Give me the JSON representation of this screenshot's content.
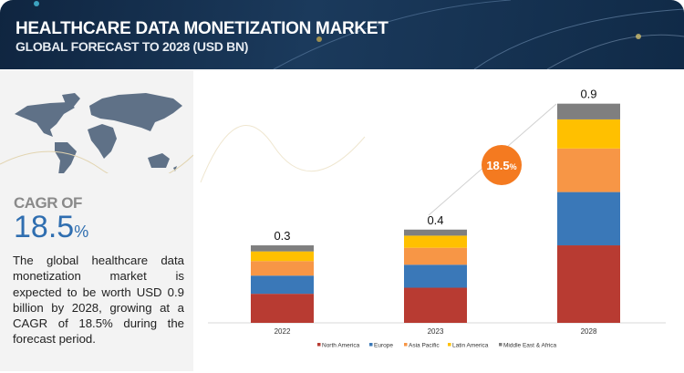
{
  "header": {
    "title": "HEALTHCARE DATA MONETIZATION MARKET",
    "subtitle": "GLOBAL FORECAST TO 2028 (USD BN)"
  },
  "sidebar": {
    "cagr_label": "CAGR OF",
    "cagr_value": "18.5",
    "cagr_unit": "%",
    "description": "The global healthcare data monetization market is expected to be worth USD 0.9 billion by 2028, growing at a CAGR of 18.5% during the forecast period."
  },
  "badge": {
    "value": "18.5",
    "unit": "%",
    "color": "#f47a20"
  },
  "chart_data": {
    "type": "bar",
    "stacked": true,
    "categories": [
      "2022",
      "2023",
      "2028"
    ],
    "totals_labels": [
      "0.3",
      "0.4",
      "0.9"
    ],
    "series": [
      {
        "name": "North America",
        "color": "#b83b32",
        "values": [
          0.12,
          0.145,
          0.32
        ]
      },
      {
        "name": "Europe",
        "color": "#3a78b8",
        "values": [
          0.075,
          0.095,
          0.22
        ]
      },
      {
        "name": "Asia Pacific",
        "color": "#f79646",
        "values": [
          0.06,
          0.07,
          0.18
        ]
      },
      {
        "name": "Latin America",
        "color": "#ffc000",
        "values": [
          0.04,
          0.05,
          0.12
        ]
      },
      {
        "name": "Middle East & Africa",
        "color": "#7f7f7f",
        "values": [
          0.025,
          0.025,
          0.065
        ]
      }
    ],
    "ylim": [
      0,
      0.9
    ],
    "grid": false,
    "legend": "bottom",
    "xlabel": "",
    "ylabel": ""
  }
}
